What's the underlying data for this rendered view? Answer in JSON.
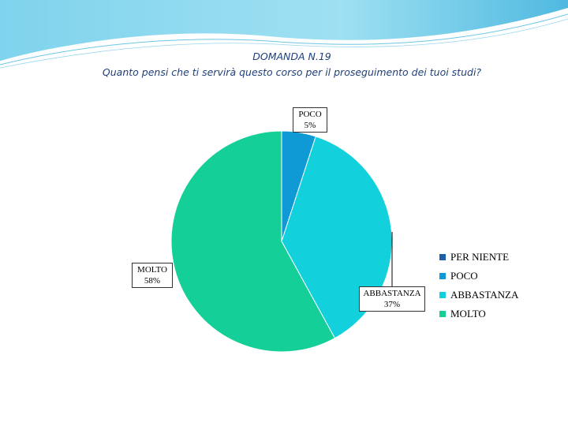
{
  "title": "DOMANDA N.19",
  "subtitle": "Quanto pensi che ti servirà questo corso per il proseguimento dei tuoi studi?",
  "chart_data": {
    "type": "pie",
    "categories": [
      "PER NIENTE",
      "POCO",
      "ABBASTANZA",
      "MOLTO"
    ],
    "values": [
      0,
      5,
      37,
      58
    ],
    "value_labels": [
      "",
      "5%",
      "37%",
      "58%"
    ],
    "colors": [
      "#1e5fa8",
      "#0f9ad6",
      "#12d0dc",
      "#14cf97"
    ],
    "legend_position": "right"
  }
}
